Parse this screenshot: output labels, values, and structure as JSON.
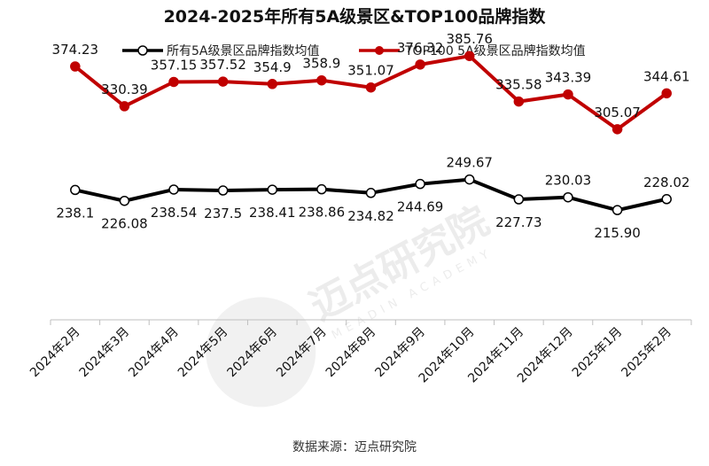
{
  "chart_data": {
    "type": "line",
    "title": "2024-2025年所有5A级景区&TOP100品牌指数",
    "categories": [
      "2024年2月",
      "2024年3月",
      "2024年4月",
      "2024年5月",
      "2024年6月",
      "2024年7月",
      "2024年8月",
      "2024年9月",
      "2024年10月",
      "2024年11月",
      "2024年12月",
      "2025年1月",
      "2025年2月"
    ],
    "series": [
      {
        "name": "所有5A级景区品牌指数均值",
        "color": "#000000",
        "values": [
          238.1,
          226.08,
          238.54,
          237.5,
          238.41,
          238.86,
          234.82,
          244.69,
          249.67,
          227.73,
          230.03,
          215.9,
          228.02
        ],
        "labels": [
          "238.1",
          "226.08",
          "238.54",
          "237.5",
          "238.41",
          "238.86",
          "234.82",
          "244.69",
          "249.67",
          "227.73",
          "230.03",
          "215.90",
          "228.02"
        ],
        "label_pos": [
          "below",
          "below",
          "below",
          "below",
          "below",
          "below",
          "below",
          "below",
          "above",
          "below",
          "above",
          "below",
          "above"
        ]
      },
      {
        "name": "TOP100 5A级景区品牌指数均值",
        "color": "#c00000",
        "values": [
          374.23,
          330.39,
          357.15,
          357.52,
          354.9,
          358.9,
          351.07,
          376.32,
          385.76,
          335.58,
          343.39,
          305.07,
          344.61
        ],
        "labels": [
          "374.23",
          "330.39",
          "357.15",
          "357.52",
          "354.9",
          "358.9",
          "351.07",
          "376.32",
          "385.76",
          "335.58",
          "343.39",
          "305.07",
          "344.61"
        ],
        "label_pos": [
          "above",
          "above",
          "above",
          "above",
          "above",
          "above",
          "above",
          "above",
          "above",
          "above",
          "above",
          "above",
          "above"
        ]
      }
    ],
    "xlabel": "",
    "ylabel": "",
    "ylim": [
      95,
      425
    ],
    "grid": false,
    "legend": "top-center",
    "source": "数据来源：迈点研究院"
  },
  "watermark": {
    "text": "迈点研究院",
    "sub": "MEADIN ACADEMY"
  }
}
